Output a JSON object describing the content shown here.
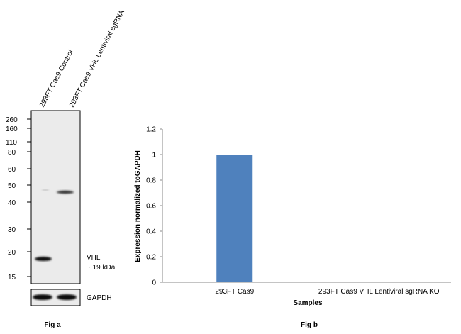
{
  "fig_a": {
    "caption": "Fig a",
    "lane_labels": [
      "293FT Cas9 Control",
      "293FT Cas9 VHL Lentiviral sgRNA"
    ],
    "ladder_marks": [
      "260",
      "160",
      "110",
      "80",
      "60",
      "50",
      "40",
      "30",
      "20",
      "15"
    ],
    "band_label_line1": "VHL",
    "band_label_line2": "~ 19 kDa",
    "loading_control_label": "GAPDH"
  },
  "chart_data": {
    "type": "bar",
    "caption": "Fig b",
    "title": "",
    "categories": [
      "293FT Cas9",
      "293FT Cas9 VHL Lentiviral sgRNA KO"
    ],
    "values": [
      1.0,
      0.0
    ],
    "xlabel": "Samples",
    "ylabel": "Expression  normalized toGAPDH",
    "ylim": [
      0,
      1.2
    ],
    "yticks": [
      "0",
      "0.2",
      "0.4",
      "0.6",
      "0.8",
      "1",
      "1.2"
    ],
    "bar_color": "#4f81bd",
    "grid": false,
    "legend": "none"
  }
}
